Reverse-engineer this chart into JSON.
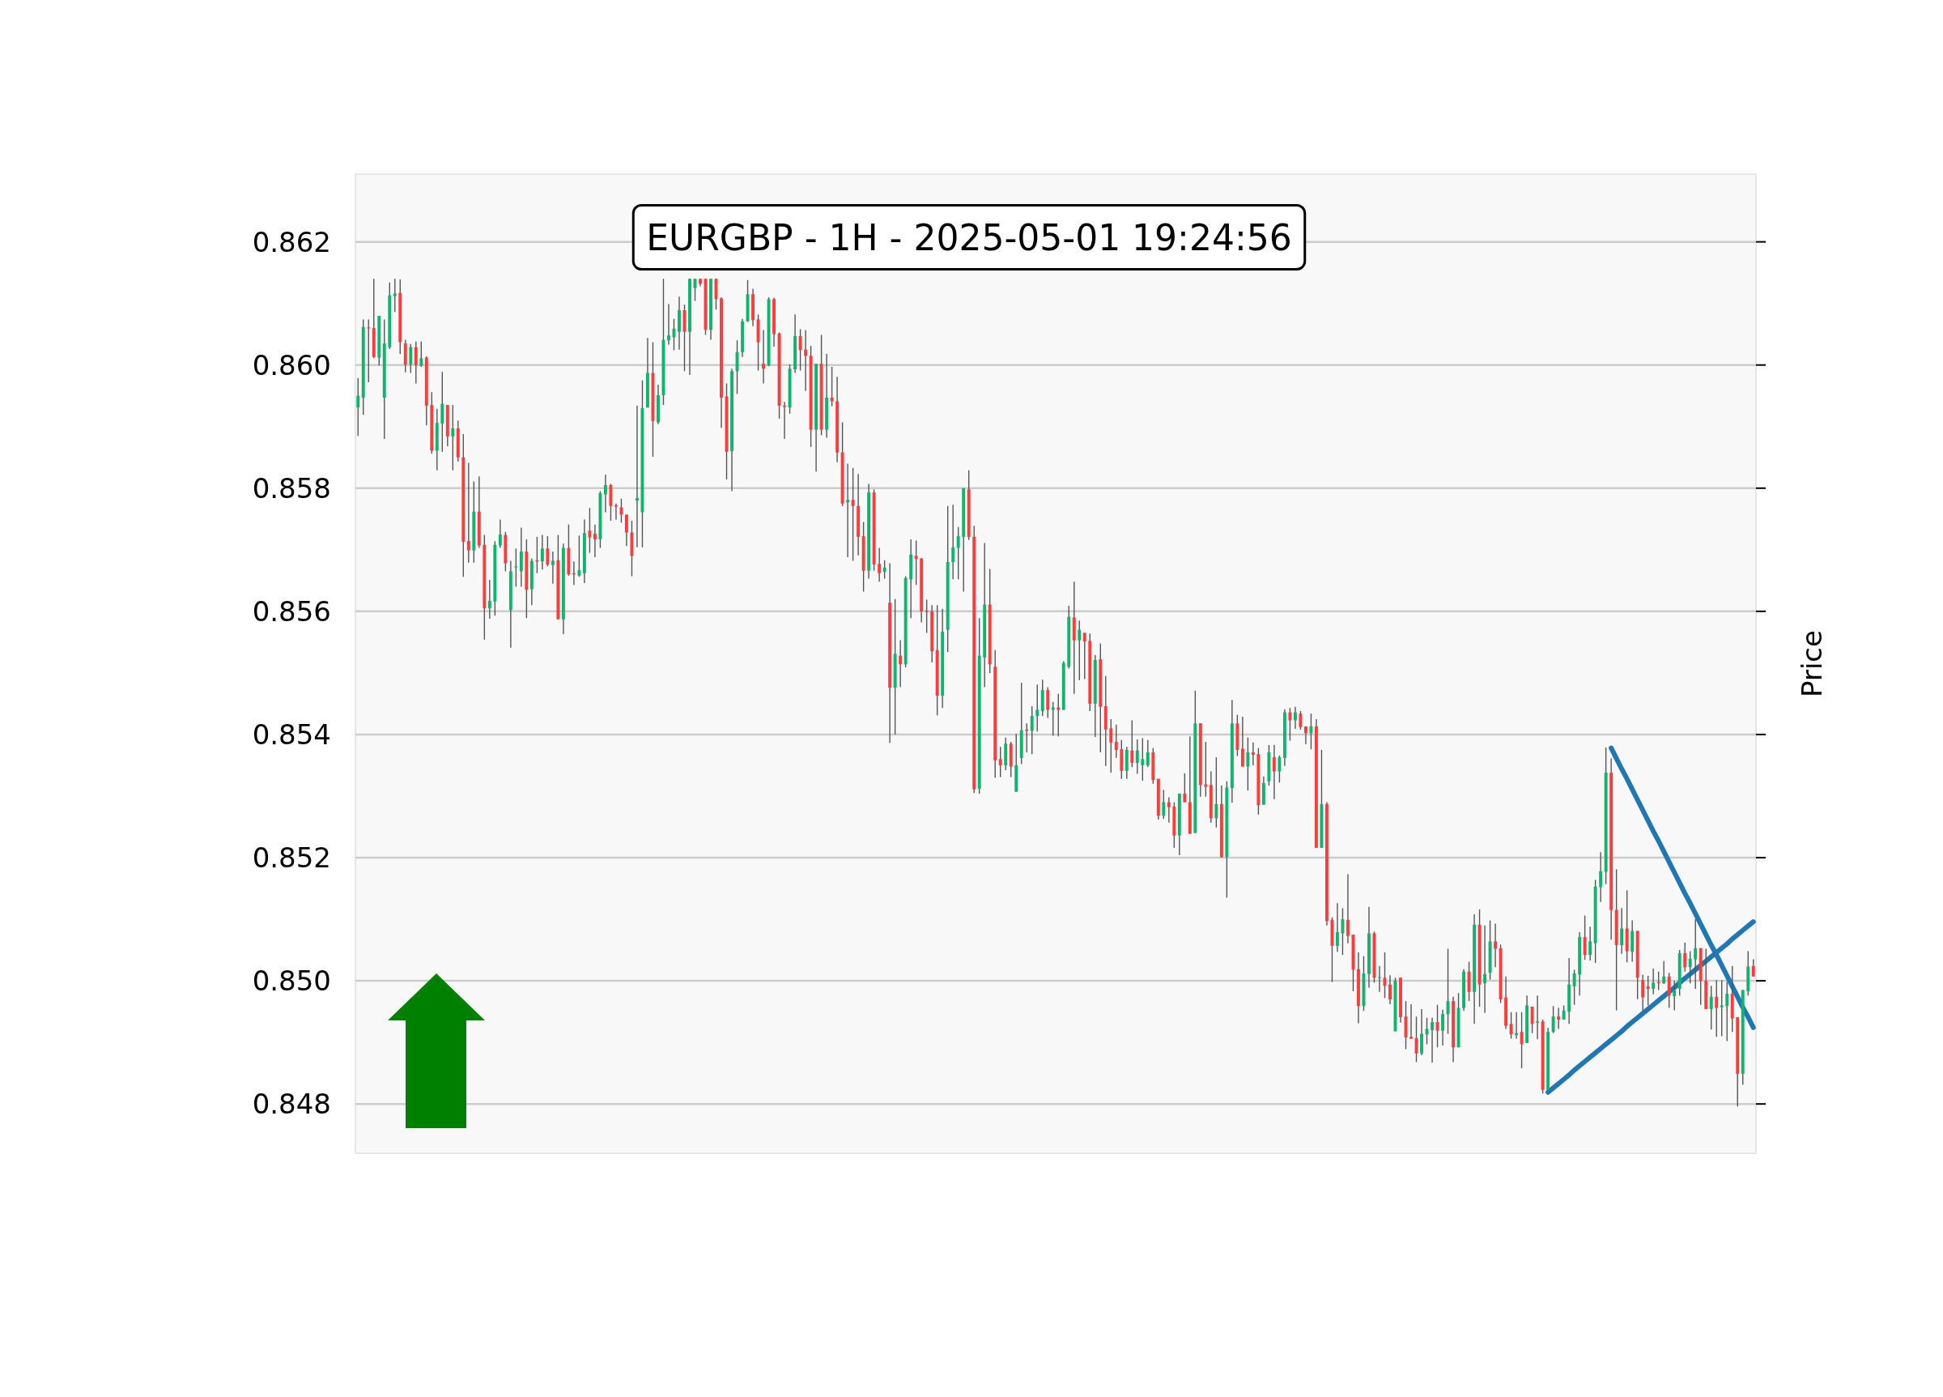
{
  "chart_data": {
    "type": "candlestick",
    "title": "EURGBP - 1H - 2025-05-01 19:24:56",
    "ylabel": "Price",
    "grid": "y",
    "tick_labels": "y",
    "ylim": [
      0.8472,
      0.8631
    ],
    "yticks": [
      {
        "value": 0.848,
        "label": "0.848"
      },
      {
        "value": 0.85,
        "label": "0.850"
      },
      {
        "value": 0.852,
        "label": "0.852"
      },
      {
        "value": 0.854,
        "label": "0.854"
      },
      {
        "value": 0.856,
        "label": "0.856"
      },
      {
        "value": 0.858,
        "label": "0.858"
      },
      {
        "value": 0.86,
        "label": "0.860"
      },
      {
        "value": 0.862,
        "label": "0.862"
      }
    ],
    "categories": [
      null,
      null,
      null,
      null,
      null,
      null,
      null,
      null,
      null,
      null,
      null,
      null,
      null,
      null,
      null,
      null,
      null,
      null,
      null,
      null,
      null,
      null,
      null,
      null,
      null,
      null,
      null,
      null,
      null,
      null,
      null,
      null,
      null,
      null,
      null,
      null,
      null,
      null,
      null,
      null,
      null,
      null,
      null,
      null,
      null,
      null,
      null,
      null,
      null,
      null,
      null,
      null,
      null,
      null,
      null,
      null,
      null,
      null,
      null,
      null,
      null,
      null,
      null,
      null,
      null,
      null,
      null,
      null,
      null,
      null,
      null,
      null,
      null,
      null,
      null,
      null,
      null,
      null,
      null,
      null,
      null,
      null,
      null,
      null,
      null,
      null,
      null,
      null,
      null,
      null,
      null,
      null,
      null,
      null,
      null,
      null,
      null,
      null,
      null,
      null,
      null,
      null,
      null,
      null,
      null,
      null,
      null,
      null,
      null,
      null,
      null,
      null,
      null,
      null,
      null,
      null,
      null,
      null,
      null,
      null,
      null,
      null,
      null,
      null,
      null,
      null,
      null,
      null,
      null,
      null,
      null,
      null,
      null,
      null,
      null,
      null,
      null,
      null,
      null,
      null,
      null,
      null,
      null,
      null,
      null,
      null,
      null,
      null,
      null,
      null,
      null,
      null,
      null,
      null,
      null,
      null,
      null,
      null,
      null,
      null,
      null,
      null,
      null,
      null,
      null,
      null,
      null,
      null,
      null,
      null,
      null,
      null,
      null,
      null,
      null,
      null,
      null,
      null,
      null,
      null,
      null,
      null,
      null,
      null,
      null,
      null,
      null,
      null,
      null,
      null,
      null,
      null,
      null,
      null,
      null,
      null,
      null,
      null,
      null,
      null,
      null,
      null,
      null,
      null,
      null,
      null,
      null,
      null,
      null,
      null,
      null,
      null,
      null,
      null,
      null,
      null,
      null,
      null,
      null,
      null,
      null,
      null,
      null,
      null,
      null,
      null,
      null,
      null,
      null,
      null,
      null,
      null,
      null,
      null,
      null,
      null,
      null,
      null,
      null,
      null,
      null,
      null,
      null,
      null,
      null,
      null,
      null,
      null,
      null,
      null,
      null,
      null,
      null,
      null,
      null,
      null,
      null,
      null,
      null,
      null,
      null,
      null,
      null,
      null,
      null,
      null
    ],
    "ohlc": [
      [
        0.85931,
        0.85979,
        0.85885,
        0.8595
      ],
      [
        0.85947,
        0.86074,
        0.85919,
        0.86062
      ],
      [
        0.86061,
        0.86074,
        0.85972,
        0.8606
      ],
      [
        0.8606,
        0.8614,
        0.86011,
        0.86013
      ],
      [
        0.86012,
        0.8608,
        0.85999,
        0.8608
      ],
      [
        0.85947,
        0.86074,
        0.8588,
        0.86035
      ],
      [
        0.86029,
        0.86134,
        0.86026,
        0.86113
      ],
      [
        0.86112,
        0.8614,
        0.86086,
        0.86116
      ],
      [
        0.86117,
        0.86139,
        0.86018,
        0.86037
      ],
      [
        0.86035,
        0.86041,
        0.85988,
        0.86001
      ],
      [
        0.86001,
        0.86034,
        0.85987,
        0.86029
      ],
      [
        0.86029,
        0.86038,
        0.8597,
        0.86
      ],
      [
        0.85999,
        0.86038,
        0.85997,
        0.86011
      ],
      [
        0.86012,
        0.86014,
        0.85902,
        0.85934
      ],
      [
        0.85935,
        0.85956,
        0.85856,
        0.85861
      ],
      [
        0.85861,
        0.85929,
        0.85829,
        0.85906
      ],
      [
        0.85905,
        0.85989,
        0.85859,
        0.85937
      ],
      [
        0.85935,
        0.85935,
        0.85868,
        0.85884
      ],
      [
        0.85884,
        0.85935,
        0.85829,
        0.85897
      ],
      [
        0.85897,
        0.8591,
        0.85843,
        0.8585
      ],
      [
        0.8585,
        0.85888,
        0.85656,
        0.85713
      ],
      [
        0.85714,
        0.85841,
        0.85679,
        0.85699
      ],
      [
        0.85699,
        0.85811,
        0.85679,
        0.85762
      ],
      [
        0.85762,
        0.85819,
        0.85703,
        0.85707
      ],
      [
        0.85708,
        0.85724,
        0.85554,
        0.85605
      ],
      [
        0.85605,
        0.85651,
        0.85588,
        0.85617
      ],
      [
        0.85616,
        0.85714,
        0.85593,
        0.85708
      ],
      [
        0.85707,
        0.85749,
        0.85703,
        0.85725
      ],
      [
        0.85724,
        0.85729,
        0.85665,
        0.85678
      ],
      [
        0.85602,
        0.85682,
        0.85541,
        0.85665
      ],
      [
        0.85672,
        0.85702,
        0.8564,
        0.85673
      ],
      [
        0.85665,
        0.85736,
        0.8564,
        0.85697
      ],
      [
        0.85697,
        0.85717,
        0.85589,
        0.85635
      ],
      [
        0.85636,
        0.85686,
        0.8561,
        0.85682
      ],
      [
        0.85683,
        0.85721,
        0.85662,
        0.85681
      ],
      [
        0.85681,
        0.85724,
        0.85668,
        0.85702
      ],
      [
        0.85702,
        0.85722,
        0.85673,
        0.85676
      ],
      [
        0.85675,
        0.85697,
        0.85645,
        0.85682
      ],
      [
        0.85683,
        0.85724,
        0.85587,
        0.85587
      ],
      [
        0.85587,
        0.8571,
        0.85563,
        0.85703
      ],
      [
        0.85703,
        0.85741,
        0.85658,
        0.8566
      ],
      [
        0.85662,
        0.85681,
        0.85643,
        0.8566
      ],
      [
        0.85658,
        0.85723,
        0.85656,
        0.85667
      ],
      [
        0.85662,
        0.85749,
        0.85646,
        0.85727
      ],
      [
        0.85731,
        0.85768,
        0.85695,
        0.8572
      ],
      [
        0.85726,
        0.85741,
        0.85688,
        0.85717
      ],
      [
        0.85717,
        0.85795,
        0.85703,
        0.85792
      ],
      [
        0.8579,
        0.85822,
        0.85761,
        0.85805
      ],
      [
        0.85805,
        0.85807,
        0.85747,
        0.85771
      ],
      [
        0.85772,
        0.85775,
        0.85749,
        0.8577
      ],
      [
        0.85769,
        0.85783,
        0.85744,
        0.85757
      ],
      [
        0.85757,
        0.85757,
        0.85706,
        0.85728
      ],
      [
        0.85728,
        0.85747,
        0.85657,
        0.8569
      ],
      [
        0.8578,
        0.85934,
        0.85704,
        0.85784
      ],
      [
        0.85761,
        0.85975,
        0.85704,
        0.8593
      ],
      [
        0.85931,
        0.86044,
        0.85931,
        0.85987
      ],
      [
        0.85987,
        0.86037,
        0.85851,
        0.85909
      ],
      [
        0.85907,
        0.85968,
        0.85904,
        0.85951
      ],
      [
        0.85951,
        0.8614,
        0.85935,
        0.86041
      ],
      [
        0.8604,
        0.86099,
        0.86033,
        0.86048
      ],
      [
        0.86045,
        0.86075,
        0.86024,
        0.86059
      ],
      [
        0.86054,
        0.86111,
        0.86025,
        0.86089
      ],
      [
        0.86089,
        0.86098,
        0.8599,
        0.86054
      ],
      [
        0.86054,
        0.8614,
        0.85984,
        0.8614
      ],
      [
        0.86125,
        0.8614,
        0.86104,
        0.8614
      ],
      [
        0.8614,
        0.8614,
        0.86128,
        0.86132
      ],
      [
        0.8614,
        0.8614,
        0.86049,
        0.86057
      ],
      [
        0.86057,
        0.8614,
        0.86041,
        0.8614
      ],
      [
        0.8614,
        0.8614,
        0.8609,
        0.86107
      ],
      [
        0.86108,
        0.8611,
        0.85898,
        0.85947
      ],
      [
        0.85949,
        0.8597,
        0.85814,
        0.85859
      ],
      [
        0.8586,
        0.85994,
        0.85795,
        0.8599
      ],
      [
        0.8599,
        0.8604,
        0.85953,
        0.86021
      ],
      [
        0.86021,
        0.86075,
        0.86013,
        0.86071
      ],
      [
        0.86071,
        0.86138,
        0.8607,
        0.86115
      ],
      [
        0.86115,
        0.86124,
        0.86063,
        0.86073
      ],
      [
        0.86074,
        0.86082,
        0.85991,
        0.86037
      ],
      [
        0.86002,
        0.86057,
        0.8597,
        0.85994
      ],
      [
        0.85999,
        0.8611,
        0.85998,
        0.86107
      ],
      [
        0.86107,
        0.86109,
        0.8603,
        0.8605
      ],
      [
        0.86051,
        0.86053,
        0.85913,
        0.85934
      ],
      [
        0.85934,
        0.8594,
        0.8588,
        0.85932
      ],
      [
        0.85931,
        0.86001,
        0.85921,
        0.85994
      ],
      [
        0.85993,
        0.86082,
        0.85987,
        0.86047
      ],
      [
        0.86047,
        0.86058,
        0.85991,
        0.86024
      ],
      [
        0.86025,
        0.86057,
        0.85958,
        0.86015
      ],
      [
        0.86015,
        0.86031,
        0.85867,
        0.85895
      ],
      [
        0.85895,
        0.86002,
        0.85827,
        0.86002
      ],
      [
        0.86002,
        0.86049,
        0.85886,
        0.85895
      ],
      [
        0.85895,
        0.86018,
        0.85882,
        0.85947
      ],
      [
        0.85947,
        0.85997,
        0.85933,
        0.85941
      ],
      [
        0.85941,
        0.85981,
        0.85842,
        0.85858
      ],
      [
        0.85858,
        0.85907,
        0.85771,
        0.85775
      ],
      [
        0.85777,
        0.8584,
        0.85688,
        0.85781
      ],
      [
        0.85781,
        0.85833,
        0.85682,
        0.85771
      ],
      [
        0.85771,
        0.85823,
        0.85691,
        0.85721
      ],
      [
        0.85722,
        0.85745,
        0.85632,
        0.85666
      ],
      [
        0.85666,
        0.85807,
        0.85653,
        0.85793
      ],
      [
        0.85793,
        0.85798,
        0.85666,
        0.85676
      ],
      [
        0.85677,
        0.85703,
        0.85648,
        0.85662
      ],
      [
        0.85664,
        0.85683,
        0.85653,
        0.85671
      ],
      [
        0.85614,
        0.85678,
        0.85386,
        0.85476
      ],
      [
        0.85476,
        0.8562,
        0.854,
        0.85531
      ],
      [
        0.85528,
        0.85553,
        0.85477,
        0.85514
      ],
      [
        0.85514,
        0.85657,
        0.85509,
        0.85654
      ],
      [
        0.85652,
        0.85717,
        0.85589,
        0.85692
      ],
      [
        0.8569,
        0.85715,
        0.85643,
        0.85685
      ],
      [
        0.85686,
        0.85686,
        0.85582,
        0.856
      ],
      [
        0.85601,
        0.85619,
        0.85565,
        0.85599
      ],
      [
        0.856,
        0.8561,
        0.85517,
        0.85535
      ],
      [
        0.85537,
        0.8561,
        0.85431,
        0.85463
      ],
      [
        0.85463,
        0.85604,
        0.85443,
        0.85567
      ],
      [
        0.8557,
        0.85771,
        0.85534,
        0.8568
      ],
      [
        0.8568,
        0.85773,
        0.85652,
        0.85704
      ],
      [
        0.85703,
        0.85737,
        0.85652,
        0.85722
      ],
      [
        0.85721,
        0.858,
        0.85632,
        0.858
      ],
      [
        0.85798,
        0.85829,
        0.85716,
        0.85721
      ],
      [
        0.85721,
        0.85739,
        0.85305,
        0.85311
      ],
      [
        0.85312,
        0.85589,
        0.85304,
        0.85528
      ],
      [
        0.85525,
        0.85711,
        0.85477,
        0.85611
      ],
      [
        0.85611,
        0.85669,
        0.855,
        0.85514
      ],
      [
        0.8551,
        0.85537,
        0.8533,
        0.85358
      ],
      [
        0.8536,
        0.8538,
        0.85331,
        0.8535
      ],
      [
        0.8535,
        0.85395,
        0.85342,
        0.85385
      ],
      [
        0.85385,
        0.85388,
        0.85331,
        0.85348
      ],
      [
        0.85307,
        0.85401,
        0.85307,
        0.8535
      ],
      [
        0.85362,
        0.85484,
        0.85352,
        0.85407
      ],
      [
        0.85408,
        0.85418,
        0.85371,
        0.85406
      ],
      [
        0.85406,
        0.85446,
        0.85368,
        0.8543
      ],
      [
        0.8543,
        0.85481,
        0.85405,
        0.8544
      ],
      [
        0.85438,
        0.85489,
        0.8543,
        0.85472
      ],
      [
        0.85472,
        0.85477,
        0.85427,
        0.8544
      ],
      [
        0.8544,
        0.85453,
        0.85398,
        0.85444
      ],
      [
        0.85444,
        0.85466,
        0.85397,
        0.8544
      ],
      [
        0.8544,
        0.85519,
        0.8544,
        0.85516
      ],
      [
        0.8551,
        0.85609,
        0.85507,
        0.85591
      ],
      [
        0.8559,
        0.85648,
        0.85466,
        0.85553
      ],
      [
        0.85553,
        0.85585,
        0.85488,
        0.8557
      ],
      [
        0.85565,
        0.85565,
        0.8549,
        0.85551
      ],
      [
        0.85552,
        0.85564,
        0.85438,
        0.8545
      ],
      [
        0.8545,
        0.85529,
        0.85396,
        0.85521
      ],
      [
        0.85522,
        0.85548,
        0.85371,
        0.85445
      ],
      [
        0.85446,
        0.85495,
        0.85349,
        0.85408
      ],
      [
        0.8541,
        0.85425,
        0.85338,
        0.85387
      ],
      [
        0.85388,
        0.85416,
        0.85362,
        0.85375
      ],
      [
        0.85376,
        0.85391,
        0.85328,
        0.85341
      ],
      [
        0.85341,
        0.8538,
        0.85328,
        0.85375
      ],
      [
        0.85374,
        0.85423,
        0.85347,
        0.85354
      ],
      [
        0.85354,
        0.85392,
        0.85336,
        0.85374
      ],
      [
        0.8535,
        0.85394,
        0.85325,
        0.8536
      ],
      [
        0.8535,
        0.85391,
        0.85347,
        0.85371
      ],
      [
        0.85371,
        0.85378,
        0.8532,
        0.85326
      ],
      [
        0.85328,
        0.85328,
        0.85262,
        0.85268
      ],
      [
        0.85268,
        0.8531,
        0.85263,
        0.8529
      ],
      [
        0.8529,
        0.85298,
        0.85257,
        0.85282
      ],
      [
        0.85283,
        0.8529,
        0.85216,
        0.85236
      ],
      [
        0.85236,
        0.85304,
        0.85204,
        0.85304
      ],
      [
        0.85304,
        0.85337,
        0.8529,
        0.8529
      ],
      [
        0.8529,
        0.85397,
        0.85238,
        0.85239
      ],
      [
        0.8524,
        0.85471,
        0.8524,
        0.85418
      ],
      [
        0.85418,
        0.85418,
        0.85299,
        0.85318
      ],
      [
        0.85319,
        0.85388,
        0.85299,
        0.85315
      ],
      [
        0.85318,
        0.8534,
        0.85257,
        0.85264
      ],
      [
        0.85264,
        0.85363,
        0.85249,
        0.85287
      ],
      [
        0.85287,
        0.85317,
        0.852,
        0.85201
      ],
      [
        0.85201,
        0.85324,
        0.85135,
        0.85314
      ],
      [
        0.85313,
        0.85456,
        0.85289,
        0.85418
      ],
      [
        0.85418,
        0.85432,
        0.85365,
        0.85375
      ],
      [
        0.85377,
        0.85429,
        0.85348,
        0.85348
      ],
      [
        0.85348,
        0.85395,
        0.85309,
        0.85371
      ],
      [
        0.85371,
        0.85387,
        0.8535,
        0.85367
      ],
      [
        0.85368,
        0.85378,
        0.8527,
        0.85285
      ],
      [
        0.85286,
        0.85332,
        0.85286,
        0.85321
      ],
      [
        0.85324,
        0.85383,
        0.85317,
        0.85371
      ],
      [
        0.85363,
        0.85383,
        0.85295,
        0.8534
      ],
      [
        0.8534,
        0.85366,
        0.85322,
        0.85363
      ],
      [
        0.85362,
        0.85441,
        0.85349,
        0.85436
      ],
      [
        0.85436,
        0.85443,
        0.8539,
        0.85423
      ],
      [
        0.85423,
        0.85445,
        0.85409,
        0.85436
      ],
      [
        0.85434,
        0.85438,
        0.85408,
        0.85412
      ],
      [
        0.85413,
        0.85413,
        0.85384,
        0.85402
      ],
      [
        0.85402,
        0.85434,
        0.85376,
        0.85413
      ],
      [
        0.85413,
        0.85425,
        0.85216,
        0.85216
      ],
      [
        0.85216,
        0.85375,
        0.85216,
        0.85287
      ],
      [
        0.85287,
        0.8529,
        0.8509,
        0.85097
      ],
      [
        0.85099,
        0.85103,
        0.84998,
        0.85057
      ],
      [
        0.85057,
        0.85126,
        0.85047,
        0.85079
      ],
      [
        0.85077,
        0.85118,
        0.85042,
        0.851
      ],
      [
        0.85099,
        0.85173,
        0.85061,
        0.85073
      ],
      [
        0.85075,
        0.85075,
        0.84983,
        0.85018
      ],
      [
        0.85019,
        0.85046,
        0.84931,
        0.84959
      ],
      [
        0.84959,
        0.8504,
        0.84951,
        0.85012
      ],
      [
        0.85011,
        0.8512,
        0.84989,
        0.85077
      ],
      [
        0.85077,
        0.8508,
        0.84997,
        0.85005
      ],
      [
        0.85005,
        0.85024,
        0.84982,
        0.85006
      ],
      [
        0.85005,
        0.85046,
        0.84972,
        0.84992
      ],
      [
        0.84994,
        0.85009,
        0.84962,
        0.8497
      ],
      [
        0.84918,
        0.85005,
        0.84918,
        0.85
      ],
      [
        0.85005,
        0.85005,
        0.84932,
        0.84941
      ],
      [
        0.84942,
        0.84967,
        0.84889,
        0.84908
      ],
      [
        0.84909,
        0.84962,
        0.84906,
        0.84906
      ],
      [
        0.84907,
        0.84942,
        0.84868,
        0.84882
      ],
      [
        0.84882,
        0.84954,
        0.84879,
        0.84914
      ],
      [
        0.84913,
        0.8494,
        0.84897,
        0.84922
      ],
      [
        0.8492,
        0.8494,
        0.84867,
        0.84933
      ],
      [
        0.84933,
        0.84961,
        0.84892,
        0.84919
      ],
      [
        0.84919,
        0.84953,
        0.84895,
        0.84946
      ],
      [
        0.84946,
        0.85052,
        0.84914,
        0.84967
      ],
      [
        0.84967,
        0.84974,
        0.84868,
        0.84892
      ],
      [
        0.84892,
        0.8498,
        0.84892,
        0.84956
      ],
      [
        0.84956,
        0.85019,
        0.84951,
        0.85015
      ],
      [
        0.85015,
        0.85031,
        0.84967,
        0.84982
      ],
      [
        0.84982,
        0.85108,
        0.8493,
        0.85091
      ],
      [
        0.85091,
        0.85116,
        0.84958,
        0.84994
      ],
      [
        0.84996,
        0.8509,
        0.84948,
        0.85011
      ],
      [
        0.85013,
        0.85098,
        0.85002,
        0.85064
      ],
      [
        0.85064,
        0.85093,
        0.85022,
        0.85052
      ],
      [
        0.85053,
        0.85059,
        0.84964,
        0.8497
      ],
      [
        0.84973,
        0.85007,
        0.84922,
        0.84927
      ],
      [
        0.8493,
        0.84949,
        0.84906,
        0.84913
      ],
      [
        0.84912,
        0.84949,
        0.84906,
        0.84915
      ],
      [
        0.84917,
        0.84949,
        0.84858,
        0.84897
      ],
      [
        0.84899,
        0.84976,
        0.84899,
        0.8496
      ],
      [
        0.84958,
        0.84958,
        0.84915,
        0.8493
      ],
      [
        0.84932,
        0.84976,
        0.84905,
        0.84934
      ],
      [
        0.84934,
        0.84937,
        0.84817,
        0.84823
      ],
      [
        0.84823,
        0.84924,
        0.84823,
        0.84917
      ],
      [
        0.84917,
        0.84959,
        0.84915,
        0.84942
      ],
      [
        0.84942,
        0.84956,
        0.84922,
        0.84937
      ],
      [
        0.84937,
        0.8496,
        0.84937,
        0.84952
      ],
      [
        0.8495,
        0.85037,
        0.8493,
        0.84994
      ],
      [
        0.84991,
        0.85018,
        0.84961,
        0.85012
      ],
      [
        0.8501,
        0.85079,
        0.84976,
        0.85071
      ],
      [
        0.85071,
        0.85106,
        0.85034,
        0.85042
      ],
      [
        0.85042,
        0.85088,
        0.85033,
        0.85064
      ],
      [
        0.85061,
        0.85164,
        0.85029,
        0.85153
      ],
      [
        0.85152,
        0.85209,
        0.85128,
        0.85178
      ],
      [
        0.85177,
        0.85379,
        0.85157,
        0.85338
      ],
      [
        0.85338,
        0.85361,
        0.85067,
        0.85115
      ],
      [
        0.85115,
        0.85181,
        0.84952,
        0.85058
      ],
      [
        0.85058,
        0.85118,
        0.85044,
        0.85085
      ],
      [
        0.85085,
        0.85147,
        0.8503,
        0.85048
      ],
      [
        0.85047,
        0.85098,
        0.85031,
        0.85081
      ],
      [
        0.85081,
        0.85081,
        0.8497,
        0.85005
      ],
      [
        0.85001,
        0.8501,
        0.84951,
        0.84973
      ],
      [
        0.84991,
        0.85008,
        0.8496,
        0.84987
      ],
      [
        0.84987,
        0.8502,
        0.84978,
        0.84997
      ],
      [
        0.84998,
        0.85015,
        0.84985,
        0.84996
      ],
      [
        0.84996,
        0.85032,
        0.84995,
        0.85007
      ],
      [
        0.85007,
        0.85013,
        0.84956,
        0.84976
      ],
      [
        0.84975,
        0.85,
        0.84952,
        0.84985
      ],
      [
        0.84987,
        0.8505,
        0.84976,
        0.85045
      ],
      [
        0.85045,
        0.85062,
        0.85015,
        0.85022
      ],
      [
        0.85022,
        0.85048,
        0.84996,
        0.85036
      ],
      [
        0.85035,
        0.851,
        0.84987,
        0.85053
      ],
      [
        0.85053,
        0.85053,
        0.84961,
        0.85
      ],
      [
        0.85,
        0.85052,
        0.84954,
        0.84954
      ],
      [
        0.84954,
        0.84992,
        0.84921,
        0.84974
      ],
      [
        0.84974,
        0.85001,
        0.84909,
        0.84956
      ],
      [
        0.84957,
        0.85001,
        0.8491,
        0.8496
      ],
      [
        0.84959,
        0.84998,
        0.84902,
        0.84979
      ],
      [
        0.84979,
        0.85024,
        0.84917,
        0.84939
      ],
      [
        0.84941,
        0.84941,
        0.84796,
        0.84849
      ],
      [
        0.84849,
        0.84985,
        0.84831,
        0.84985
      ],
      [
        0.84983,
        0.85048,
        0.84976,
        0.85023
      ],
      [
        0.85024,
        0.85035,
        0.85007,
        0.85007
      ]
    ],
    "series": [
      {
        "type": "line",
        "color": "#1f77b4",
        "values": [
          null,
          null,
          null,
          null,
          null,
          null,
          null,
          null,
          null,
          null,
          null,
          null,
          null,
          null,
          null,
          null,
          null,
          null,
          null,
          null,
          null,
          null,
          null,
          null,
          null,
          null,
          null,
          null,
          null,
          null,
          null,
          null,
          null,
          null,
          null,
          null,
          null,
          null,
          null,
          null,
          null,
          null,
          null,
          null,
          null,
          null,
          null,
          null,
          null,
          null,
          null,
          null,
          null,
          null,
          null,
          null,
          null,
          null,
          null,
          null,
          null,
          null,
          null,
          null,
          null,
          null,
          null,
          null,
          null,
          null,
          null,
          null,
          null,
          null,
          null,
          null,
          null,
          null,
          null,
          null,
          null,
          null,
          null,
          null,
          null,
          null,
          null,
          null,
          null,
          null,
          null,
          null,
          null,
          null,
          null,
          null,
          null,
          null,
          null,
          null,
          null,
          null,
          null,
          null,
          null,
          null,
          null,
          null,
          null,
          null,
          null,
          null,
          null,
          null,
          null,
          null,
          null,
          null,
          null,
          null,
          null,
          null,
          null,
          null,
          null,
          null,
          null,
          null,
          null,
          null,
          null,
          null,
          null,
          null,
          null,
          null,
          null,
          null,
          null,
          null,
          null,
          null,
          null,
          null,
          null,
          null,
          null,
          null,
          null,
          null,
          null,
          null,
          null,
          null,
          null,
          null,
          null,
          null,
          null,
          null,
          null,
          null,
          null,
          null,
          null,
          null,
          null,
          null,
          null,
          null,
          null,
          null,
          null,
          null,
          null,
          null,
          null,
          null,
          null,
          null,
          null,
          null,
          null,
          null,
          null,
          null,
          null,
          null,
          null,
          null,
          null,
          null,
          null,
          null,
          null,
          null,
          null,
          null,
          null,
          null,
          null,
          null,
          null,
          null,
          null,
          null,
          null,
          null,
          null,
          null,
          null,
          null,
          null,
          null,
          null,
          null,
          null,
          null,
          null,
          null,
          null,
          null,
          null,
          null,
          null,
          null,
          null,
          null,
          null,
          null,
          null,
          null,
          null,
          null,
          null,
          null,
          null,
          null,
          0.85378,
          0.85361,
          0.85344,
          0.85328,
          0.85311,
          0.85294,
          0.85277,
          0.8526,
          0.85243,
          0.85227,
          0.8521,
          0.85193,
          0.85176,
          0.85159,
          0.85142,
          0.85126,
          0.85109,
          0.85092,
          0.85075,
          0.85058,
          0.85042,
          0.85025,
          0.85008,
          0.84991,
          0.84974,
          0.84957,
          0.84941,
          0.84924
        ]
      },
      {
        "type": "line",
        "color": "#1f77b4",
        "values": [
          null,
          null,
          null,
          null,
          null,
          null,
          null,
          null,
          null,
          null,
          null,
          null,
          null,
          null,
          null,
          null,
          null,
          null,
          null,
          null,
          null,
          null,
          null,
          null,
          null,
          null,
          null,
          null,
          null,
          null,
          null,
          null,
          null,
          null,
          null,
          null,
          null,
          null,
          null,
          null,
          null,
          null,
          null,
          null,
          null,
          null,
          null,
          null,
          null,
          null,
          null,
          null,
          null,
          null,
          null,
          null,
          null,
          null,
          null,
          null,
          null,
          null,
          null,
          null,
          null,
          null,
          null,
          null,
          null,
          null,
          null,
          null,
          null,
          null,
          null,
          null,
          null,
          null,
          null,
          null,
          null,
          null,
          null,
          null,
          null,
          null,
          null,
          null,
          null,
          null,
          null,
          null,
          null,
          null,
          null,
          null,
          null,
          null,
          null,
          null,
          null,
          null,
          null,
          null,
          null,
          null,
          null,
          null,
          null,
          null,
          null,
          null,
          null,
          null,
          null,
          null,
          null,
          null,
          null,
          null,
          null,
          null,
          null,
          null,
          null,
          null,
          null,
          null,
          null,
          null,
          null,
          null,
          null,
          null,
          null,
          null,
          null,
          null,
          null,
          null,
          null,
          null,
          null,
          null,
          null,
          null,
          null,
          null,
          null,
          null,
          null,
          null,
          null,
          null,
          null,
          null,
          null,
          null,
          null,
          null,
          null,
          null,
          null,
          null,
          null,
          null,
          null,
          null,
          null,
          null,
          null,
          null,
          null,
          null,
          null,
          null,
          null,
          null,
          null,
          null,
          null,
          null,
          null,
          null,
          null,
          null,
          null,
          null,
          null,
          null,
          null,
          null,
          null,
          null,
          null,
          null,
          null,
          null,
          null,
          null,
          null,
          null,
          null,
          null,
          null,
          null,
          null,
          null,
          null,
          null,
          null,
          null,
          null,
          null,
          null,
          null,
          null,
          null,
          null,
          null,
          null,
          null,
          null,
          null,
          null,
          null,
          0.84819,
          0.84826,
          0.84833,
          0.8484,
          0.84847,
          0.84855,
          0.84862,
          0.84869,
          0.84876,
          0.84883,
          0.8489,
          0.84897,
          0.84904,
          0.84911,
          0.84918,
          0.84926,
          0.84933,
          0.8494,
          0.84947,
          0.84954,
          0.84961,
          0.84968,
          0.84975,
          0.84982,
          0.84989,
          0.84997,
          0.85004,
          0.85011,
          0.85018,
          0.85025,
          0.85032,
          0.85039,
          0.85046,
          0.85053,
          0.8506,
          0.85068,
          0.85075,
          0.85082,
          0.85089,
          0.85096
        ]
      }
    ]
  }
}
